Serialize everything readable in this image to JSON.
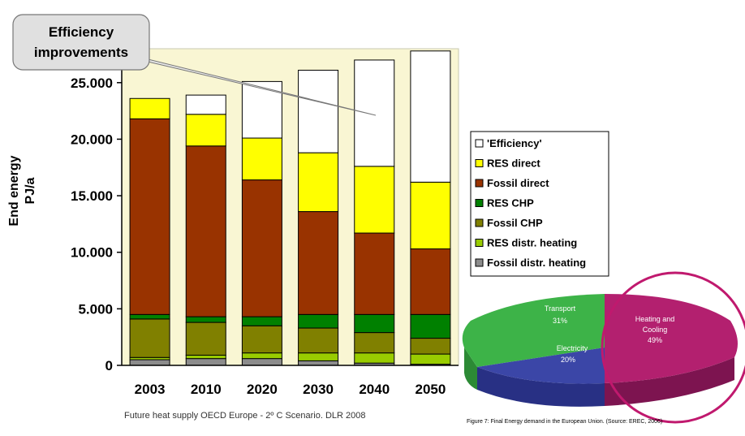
{
  "chart_data": [
    {
      "type": "bar",
      "stacked": true,
      "categories": [
        "2003",
        "2010",
        "2020",
        "2030",
        "2040",
        "2050"
      ],
      "ylabel_line1": "End energy",
      "ylabel_line2": "PJ/a",
      "ylim": [
        0,
        28000
      ],
      "yticks": [
        0,
        5000,
        10000,
        15000,
        20000,
        25000
      ],
      "ytick_labels": [
        "0",
        "5.000",
        "10.000",
        "15.000",
        "20.000",
        "25.000"
      ],
      "background_color": "#f9f6d3",
      "grid": false,
      "legend_position": "right",
      "series": [
        {
          "name": "Fossil distr. heating",
          "color": "#8c8c8c",
          "values": [
            500,
            600,
            600,
            400,
            200,
            100
          ]
        },
        {
          "name": "RES distr. heating",
          "color": "#99cc00",
          "values": [
            200,
            300,
            500,
            700,
            900,
            900
          ]
        },
        {
          "name": "Fossil CHP",
          "color": "#808000",
          "values": [
            3400,
            2900,
            2400,
            2200,
            1800,
            1400
          ]
        },
        {
          "name": "RES CHP",
          "color": "#008000",
          "values": [
            400,
            500,
            800,
            1200,
            1600,
            2100
          ]
        },
        {
          "name": "Fossil direct",
          "color": "#993300",
          "values": [
            17300,
            15100,
            12100,
            9100,
            7200,
            5800
          ]
        },
        {
          "name": "RES direct",
          "color": "#ffff00",
          "values": [
            1800,
            2800,
            3700,
            5200,
            5900,
            5900
          ]
        },
        {
          "name": "'Efficiency'",
          "color": "#ffffff",
          "values": [
            0,
            1700,
            5000,
            7300,
            9400,
            11600
          ]
        }
      ],
      "legend_order": [
        "'Efficiency'",
        "RES direct",
        "Fossil direct",
        "RES CHP",
        "Fossil CHP",
        "RES distr. heating",
        "Fossil distr. heating"
      ],
      "annotation": {
        "line1": "Efficiency",
        "line2": "improvements"
      },
      "caption": "Future heat supply OECD Europe - 2º C Scenario. DLR 2008"
    },
    {
      "type": "pie",
      "slices": [
        {
          "label": "Heating and",
          "label2": "Cooling",
          "percent_label": "49%",
          "value": 49,
          "color": "#b3206f"
        },
        {
          "label": "Electricity",
          "label2": "",
          "percent_label": "20%",
          "value": 20,
          "color": "#3b46a7"
        },
        {
          "label": "Transport",
          "label2": "",
          "percent_label": "31%",
          "value": 31,
          "color": "#3db348"
        }
      ],
      "highlight_color": "#c0196e",
      "caption": "Figure 7: Final Energy demand in the European Union. (Source: EREC, 2006)"
    }
  ]
}
